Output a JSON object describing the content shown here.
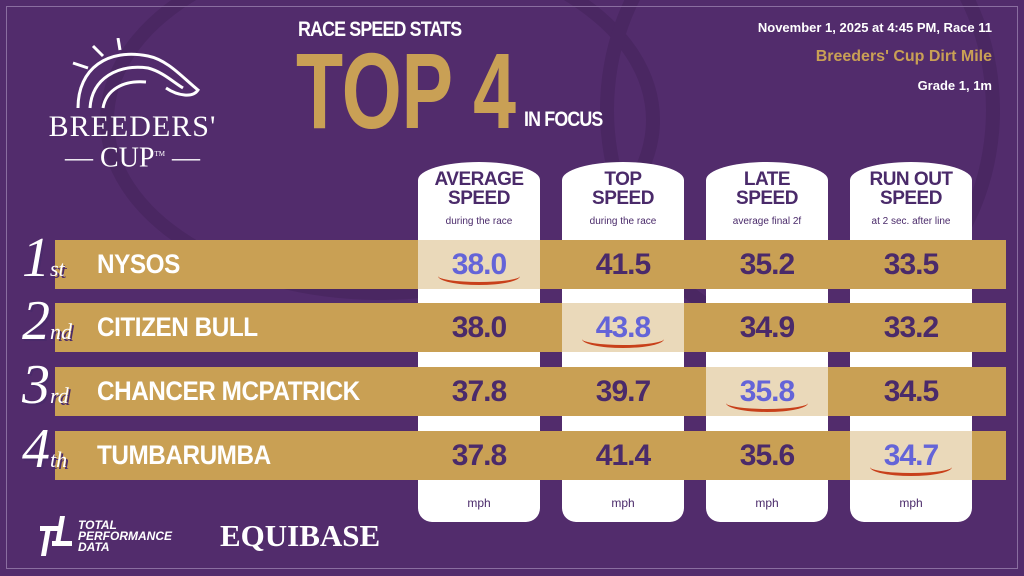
{
  "header": {
    "kicker": "RACE SPEED STATS",
    "title": "TOP 4",
    "suffix": "IN FOCUS"
  },
  "logo": {
    "line1": "BREEDERS'",
    "line2": "CUP",
    "tm": "TM"
  },
  "race": {
    "datetime": "November 1, 2025 at 4:45 PM, Race 11",
    "name": "Breeders' Cup Dirt Mile",
    "grade": "Grade 1, 1m"
  },
  "columns": [
    {
      "title": "AVERAGE SPEED",
      "sub": "during the race",
      "unit": "mph"
    },
    {
      "title": "TOP SPEED",
      "sub": "during the race",
      "unit": "mph"
    },
    {
      "title": "LATE SPEED",
      "sub": "average final 2f",
      "unit": "mph"
    },
    {
      "title": "RUN OUT SPEED",
      "sub": "at 2 sec. after line",
      "unit": "mph"
    }
  ],
  "rows": [
    {
      "pos": "1",
      "suffix": "st",
      "name": "NYSOS",
      "values": [
        "38.0",
        "41.5",
        "35.2",
        "33.5"
      ],
      "highlight": 0
    },
    {
      "pos": "2",
      "suffix": "nd",
      "name": "CITIZEN BULL",
      "values": [
        "38.0",
        "43.8",
        "34.9",
        "33.2"
      ],
      "highlight": 1
    },
    {
      "pos": "3",
      "suffix": "rd",
      "name": "CHANCER MCPATRICK",
      "values": [
        "37.8",
        "39.7",
        "35.8",
        "34.5"
      ],
      "highlight": 2
    },
    {
      "pos": "4",
      "suffix": "th",
      "name": "TUMBARUMBA",
      "values": [
        "37.8",
        "41.4",
        "35.6",
        "34.7"
      ],
      "highlight": 3
    }
  ],
  "footer": {
    "tpd": "TOTAL PERFORMANCE DATA",
    "tpd_lines": [
      "TOTAL",
      "PERFORMANCE",
      "DATA"
    ],
    "equibase": "EQUIBASE"
  },
  "colors": {
    "background": "#522c6c",
    "gold": "#c9a054",
    "highlight_cell": "#ead9ba",
    "highlight_text": "#6464d8",
    "text_dark": "#4a2a6a",
    "underline": "#c8401a"
  }
}
